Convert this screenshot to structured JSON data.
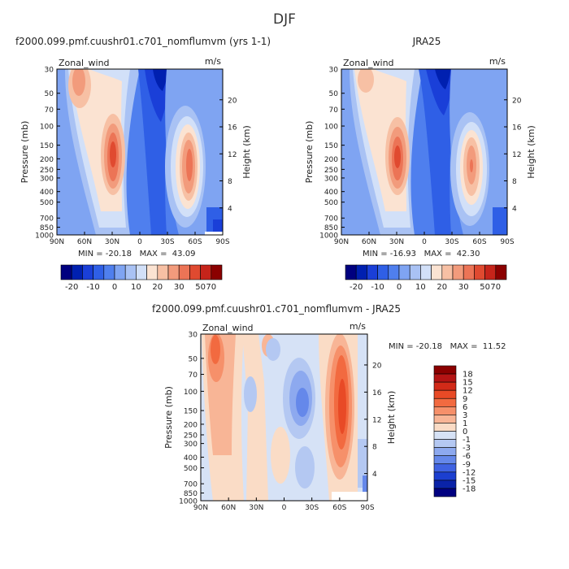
{
  "figure": {
    "title": "DJF"
  },
  "panels": [
    {
      "title": "f2000.099.pmf.cuushr01.c701_nomflumvm (yrs 1-1)",
      "left_label": "Zonal_wind",
      "units": "m/s",
      "y_label": "Pressure (mb)",
      "y2_label": "Height (km)",
      "minmax": "MIN = -20.18   MAX =  43.09"
    },
    {
      "title": "JRA25",
      "left_label": "Zonal_wind",
      "units": "m/s",
      "y_label": "Pressure (mb)",
      "y2_label": "Height (km)",
      "minmax": "MIN = -16.93   MAX =  42.30"
    },
    {
      "title": "f2000.099.pmf.cuushr01.c701_nomflumvm - JRA25",
      "left_label": "Zonal_wind",
      "units": "m/s",
      "y_label": "Pressure (mb)",
      "y2_label": "Height (km)",
      "minmax": "MIN = -20.18   MAX =  11.52"
    }
  ],
  "axes": {
    "pressure_ticks": [
      30,
      50,
      70,
      100,
      150,
      200,
      250,
      300,
      400,
      500,
      700,
      850,
      1000
    ],
    "height_ticks_km": [
      4,
      8,
      12,
      16,
      20
    ],
    "lat_ticks": [
      "90N",
      "60N",
      "30N",
      "0",
      "30S",
      "60S",
      "90S"
    ],
    "lat_values": [
      90,
      60,
      30,
      0,
      -30,
      -60,
      -90
    ]
  },
  "colorbars": {
    "full_field": {
      "labels": [
        "-20",
        "-10",
        "0",
        "10",
        "20",
        "30",
        "50",
        "70"
      ],
      "colors": [
        "#00007f",
        "#0020b0",
        "#1a3fd8",
        "#2f5fe6",
        "#4f7fee",
        "#7fa4f2",
        "#a9c2f4",
        "#d2e0f8",
        "#fbe3d2",
        "#f7c0a4",
        "#f29b7c",
        "#ec7456",
        "#e04a30",
        "#c6241a",
        "#8b0000"
      ]
    },
    "difference": {
      "labels": [
        "18",
        "15",
        "12",
        "9",
        "6",
        "3",
        "1",
        "0",
        "-1",
        "-3",
        "-6",
        "-9",
        "-12",
        "-15",
        "-18"
      ],
      "colors": [
        "#8b0000",
        "#b41414",
        "#d22a18",
        "#e84a26",
        "#f26a40",
        "#f6906a",
        "#f8b596",
        "#fadcc6",
        "#d6e2f6",
        "#b4c8f2",
        "#8da9ef",
        "#6588ea",
        "#3f62e2",
        "#1c3fd0",
        "#0a23a8",
        "#000080"
      ]
    }
  },
  "chart_data": [
    {
      "type": "heatmap",
      "title": "f2000.099.pmf.cuushr01.c701_nomflumvm (yrs 1-1)",
      "variable": "Zonal_wind",
      "units": "m/s",
      "xlabel": "",
      "ylabel": "Pressure (mb)",
      "y2label": "Height (km)",
      "x_range": [
        90,
        -90
      ],
      "y_range_mb": [
        1000,
        30
      ],
      "y_scale": "log",
      "min": -20.18,
      "max": 43.09,
      "jets": [
        {
          "lat": 30,
          "pressure_mb": 200,
          "speed_ms": 43
        },
        {
          "lat": -48,
          "pressure_mb": 200,
          "speed_ms": 38
        },
        {
          "lat": 70,
          "pressure_mb": 40,
          "speed_ms": 22
        }
      ],
      "easterly_minimum": {
        "lat": 5,
        "pressure_mb": 35,
        "speed_ms": -20
      }
    },
    {
      "type": "heatmap",
      "title": "JRA25",
      "variable": "Zonal_wind",
      "units": "m/s",
      "xlabel": "",
      "ylabel": "Pressure (mb)",
      "y2label": "Height (km)",
      "x_range": [
        90,
        -90
      ],
      "y_range_mb": [
        1000,
        30
      ],
      "y_scale": "log",
      "min": -16.93,
      "max": 42.3,
      "jets": [
        {
          "lat": 30,
          "pressure_mb": 200,
          "speed_ms": 42
        },
        {
          "lat": -45,
          "pressure_mb": 250,
          "speed_ms": 35
        },
        {
          "lat": 65,
          "pressure_mb": 40,
          "speed_ms": 18
        }
      ],
      "easterly_minimum": {
        "lat": 0,
        "pressure_mb": 35,
        "speed_ms": -17
      }
    },
    {
      "type": "heatmap",
      "title": "f2000.099.pmf.cuushr01.c701_nomflumvm - JRA25",
      "variable": "Zonal_wind",
      "units": "m/s",
      "xlabel": "",
      "ylabel": "Pressure (mb)",
      "y2label": "Height (km)",
      "x_range": [
        90,
        -90
      ],
      "y_range_mb": [
        1000,
        30
      ],
      "y_scale": "log",
      "min": -20.18,
      "max": 11.52,
      "features": [
        {
          "lat": 75,
          "pressure_mb": 50,
          "diff_ms": 10
        },
        {
          "lat": -52,
          "pressure_mb": 200,
          "diff_ms": 11.5
        },
        {
          "lat": -15,
          "pressure_mb": 150,
          "diff_ms": -9
        },
        {
          "lat": 45,
          "pressure_mb": 200,
          "diff_ms": 4
        }
      ]
    }
  ]
}
